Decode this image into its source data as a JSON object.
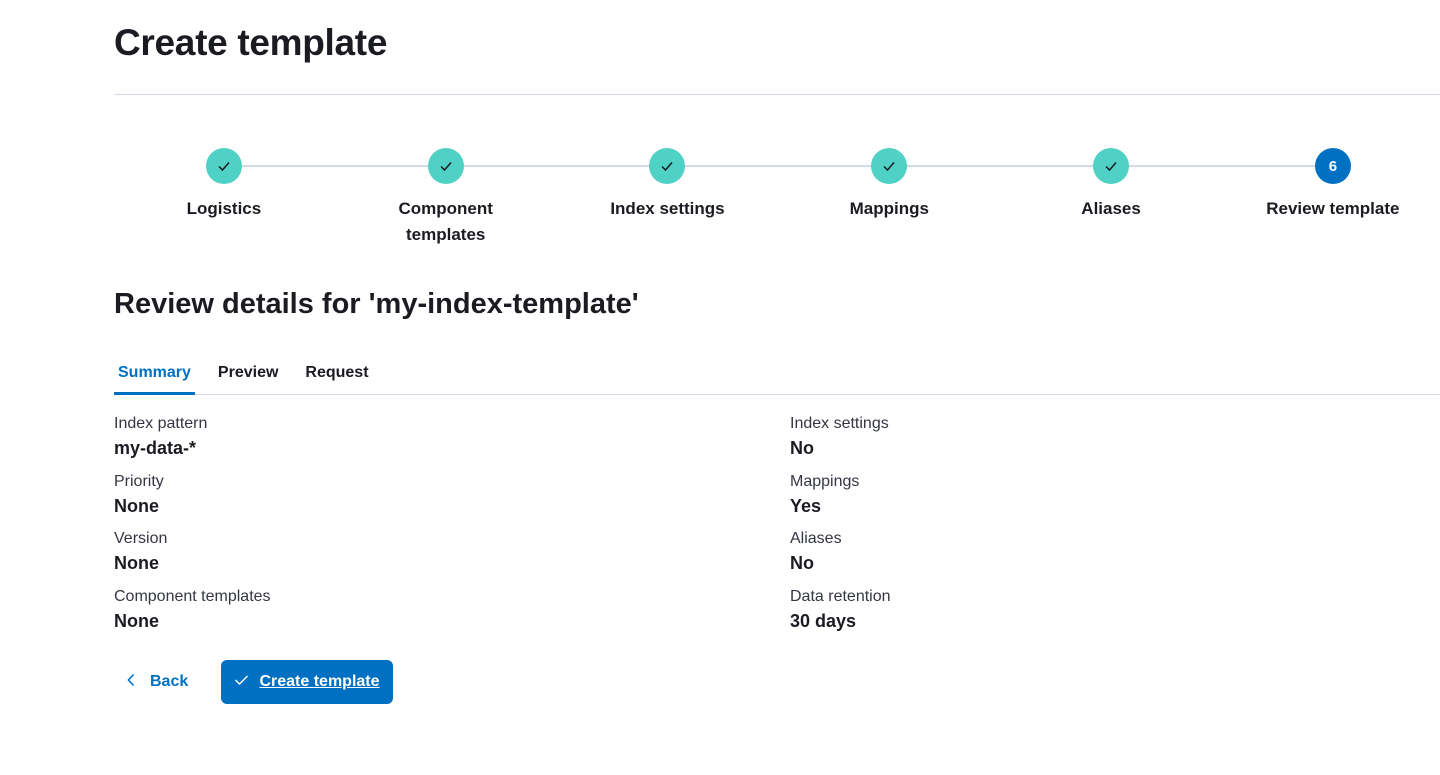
{
  "page": {
    "title": "Create template"
  },
  "steps": [
    {
      "label": "Logistics",
      "status": "complete",
      "icon": "check-icon"
    },
    {
      "label": "Component templates",
      "status": "complete",
      "icon": "check-icon"
    },
    {
      "label": "Index settings",
      "status": "complete",
      "icon": "check-icon"
    },
    {
      "label": "Mappings",
      "status": "complete",
      "icon": "check-icon"
    },
    {
      "label": "Aliases",
      "status": "complete",
      "icon": "check-icon"
    },
    {
      "label": "Review template",
      "status": "current",
      "number": "6"
    }
  ],
  "review": {
    "heading": "Review details for 'my-index-template'"
  },
  "tabs": [
    {
      "label": "Summary",
      "active": true
    },
    {
      "label": "Preview"
    },
    {
      "label": "Request"
    }
  ],
  "summary": {
    "left": [
      {
        "label": "Index pattern",
        "value": "my-data-*"
      },
      {
        "label": "Priority",
        "value": "None"
      },
      {
        "label": "Version",
        "value": "None"
      },
      {
        "label": "Component templates",
        "value": "None"
      }
    ],
    "right": [
      {
        "label": "Index settings",
        "value": "No"
      },
      {
        "label": "Mappings",
        "value": "Yes"
      },
      {
        "label": "Aliases",
        "value": "No"
      },
      {
        "label": "Data retention",
        "value": "30 days"
      }
    ]
  },
  "actions": {
    "back_label": "Back",
    "create_label": "Create template"
  },
  "colors": {
    "accent": "#0071c2",
    "complete": "#4fd1c5"
  }
}
